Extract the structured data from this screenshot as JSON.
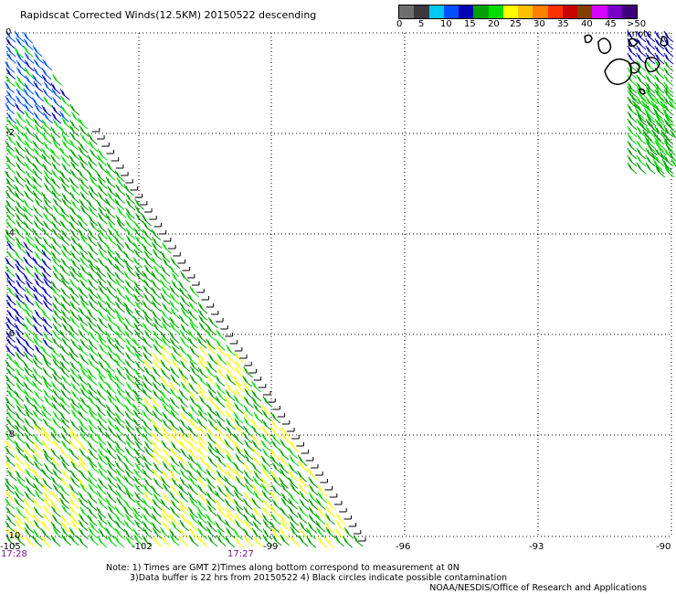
{
  "title": "Rapidscat Corrected Winds(12.5KM) 20150522 descending",
  "legend": {
    "colors": [
      "#6e6e6e",
      "#3a3a3a",
      "#00c8f0",
      "#0050ff",
      "#0000b4",
      "#00a000",
      "#00dc00",
      "#ffff00",
      "#ffc000",
      "#ff8000",
      "#ff3000",
      "#c80000",
      "#804000",
      "#d800ff",
      "#7800c8",
      "#3c0078"
    ],
    "labels": [
      "0",
      "5",
      "10",
      "15",
      "20",
      "25",
      "30",
      "35",
      "40",
      "45",
      ">50 knots"
    ]
  },
  "map": {
    "y_ticks": [
      "0",
      "-2",
      "-4",
      "-6",
      "-8",
      "-10"
    ],
    "x_ticks": [
      "-105",
      "-102",
      "-99",
      "-96",
      "-93",
      "-90"
    ],
    "time_labels": [
      "17:28",
      "17:27"
    ],
    "wind_colors": {
      "light_blue": "#0050ff",
      "dark_blue": "#0000b4",
      "light_green": "#00dc00",
      "dark_green": "#00a000",
      "yellow": "#ffff00",
      "land_black": "#000000"
    }
  },
  "notes": {
    "line1": "Note: 1) Times are GMT 2)Times along bottom correspond to measurement at 0N",
    "line2": "3)Data buffer is 22 hrs from 20150522 4) Black circles indicate possible contamination"
  },
  "credit": "NOAA/NESDIS/Office of Research and Applications"
}
